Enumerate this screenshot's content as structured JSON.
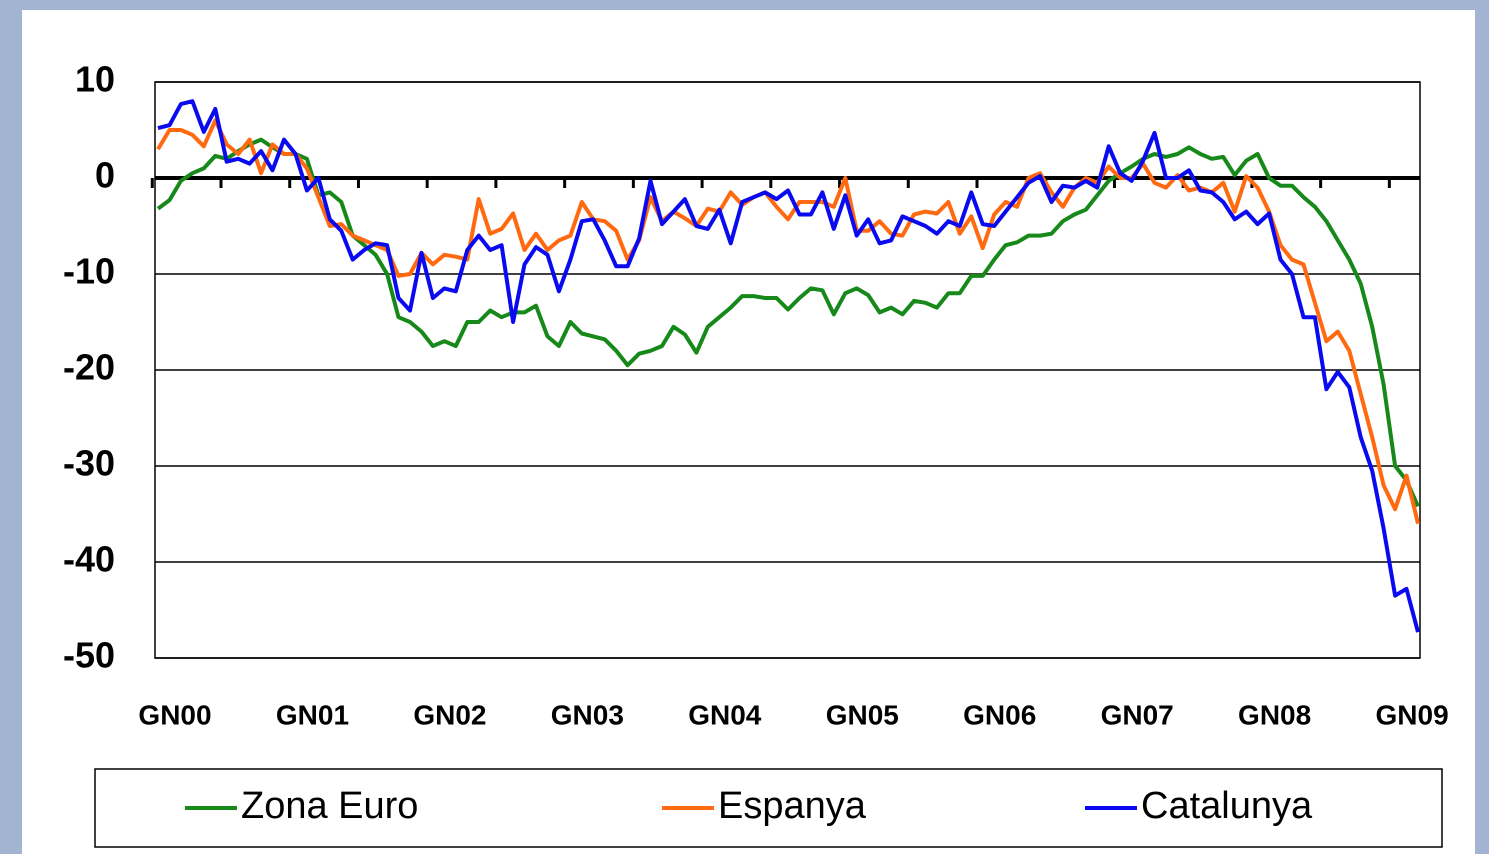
{
  "chart_data": {
    "type": "line",
    "categories": [
      "GN00",
      null,
      null,
      null,
      null,
      null,
      null,
      null,
      null,
      null,
      null,
      null,
      "GN01",
      null,
      null,
      null,
      null,
      null,
      null,
      null,
      null,
      null,
      null,
      null,
      "GN02",
      null,
      null,
      null,
      null,
      null,
      null,
      null,
      null,
      null,
      null,
      null,
      "GN03",
      null,
      null,
      null,
      null,
      null,
      null,
      null,
      null,
      null,
      null,
      null,
      "GN04",
      null,
      null,
      null,
      null,
      null,
      null,
      null,
      null,
      null,
      null,
      null,
      "GN05",
      null,
      null,
      null,
      null,
      null,
      null,
      null,
      null,
      null,
      null,
      null,
      "GN06",
      null,
      null,
      null,
      null,
      null,
      null,
      null,
      null,
      null,
      null,
      null,
      "GN07",
      null,
      null,
      null,
      null,
      null,
      null,
      null,
      null,
      null,
      null,
      null,
      "GN08",
      null,
      null,
      null,
      null,
      null,
      null,
      null,
      null,
      null,
      null,
      null,
      "GN09",
      null,
      null
    ],
    "series": [
      {
        "name": "Zona Euro",
        "color": "#17891a",
        "values": [
          -3.2,
          -2.3,
          -0.3,
          0.5,
          1,
          2.3,
          2,
          2.8,
          3.5,
          4,
          3.2,
          2.5,
          2.5,
          2,
          -1.8,
          -1.5,
          -2.5,
          -6,
          -7,
          -8,
          -10,
          -14.5,
          -15,
          -16,
          -17.5,
          -17,
          -17.5,
          -15,
          -15,
          -13.8,
          -14.5,
          -14,
          -14,
          -13.3,
          -16.5,
          -17.5,
          -15,
          -16.2,
          -16.5,
          -16.8,
          -18,
          -19.5,
          -18.3,
          -18,
          -17.5,
          -15.5,
          -16.3,
          -18.2,
          -15.5,
          -14.5,
          -13.5,
          -12.3,
          -12.3,
          -12.5,
          -12.5,
          -13.7,
          -12.5,
          -11.5,
          -11.7,
          -14.2,
          -12,
          -11.5,
          -12.2,
          -14,
          -13.5,
          -14.2,
          -12.8,
          -13,
          -13.5,
          -12,
          -12,
          -10.2,
          -10.2,
          -8.5,
          -7,
          -6.7,
          -6,
          -6,
          -5.8,
          -4.5,
          -3.8,
          -3.3,
          -1.8,
          -0.3,
          0.5,
          1.2,
          2,
          2.5,
          2.2,
          2.5,
          3.2,
          2.5,
          2,
          2.2,
          0.3,
          1.8,
          2.5,
          0,
          -0.8,
          -0.8,
          -2,
          -3,
          -4.5,
          -6.5,
          -8.5,
          -11,
          -15.5,
          -21.5,
          -30,
          -31.5,
          -34.2
        ]
      },
      {
        "name": "Espanya",
        "color": "#ff6a10",
        "values": [
          3,
          5,
          5,
          4.5,
          3.3,
          6,
          3.5,
          2.5,
          4,
          0.5,
          3.5,
          2.5,
          2.5,
          1,
          -2,
          -5,
          -4.8,
          -6,
          -6.5,
          -7,
          -7.5,
          -10.2,
          -10,
          -7.8,
          -9,
          -8,
          -8.2,
          -8.5,
          -2.2,
          -5.8,
          -5.3,
          -3.7,
          -7.5,
          -5.8,
          -7.5,
          -6.5,
          -6,
          -2.5,
          -4.3,
          -4.5,
          -5.5,
          -8.5,
          -6.5,
          -2,
          -4.5,
          -3.5,
          -4.2,
          -5,
          -3.2,
          -3.5,
          -1.5,
          -2.8,
          -2,
          -1.5,
          -3,
          -4.3,
          -2.5,
          -2.5,
          -2.5,
          -3,
          0,
          -5.5,
          -5.5,
          -4.5,
          -5.8,
          -6,
          -3.8,
          -3.5,
          -3.7,
          -2.5,
          -5.8,
          -4,
          -7.3,
          -3.8,
          -2.5,
          -3,
          0,
          0.5,
          -1.5,
          -3,
          -1,
          0,
          -0.5,
          1.2,
          0,
          0,
          1.5,
          -0.5,
          -1,
          0.3,
          -1.3,
          -1,
          -1.5,
          -0.5,
          -3.5,
          0.2,
          -1,
          -3.5,
          -7,
          -8.5,
          -9,
          -13,
          -17,
          -16,
          -18,
          -22.5,
          -27,
          -32,
          -34.5,
          -31,
          -36
        ]
      },
      {
        "name": "Catalunya",
        "color": "#0a0af0",
        "values": [
          5.2,
          5.5,
          7.7,
          8,
          4.8,
          7.2,
          1.7,
          2,
          1.5,
          2.8,
          0.8,
          4,
          2.5,
          -1.3,
          0,
          -4.3,
          -5.5,
          -8.5,
          -7.5,
          -6.8,
          -7,
          -12.5,
          -13.8,
          -7.8,
          -12.5,
          -11.5,
          -11.8,
          -7.5,
          -6,
          -7.5,
          -7,
          -15,
          -9,
          -7.2,
          -8,
          -11.8,
          -8.5,
          -4.5,
          -4.3,
          -6.5,
          -9.2,
          -9.2,
          -6.3,
          -0.3,
          -4.8,
          -3.5,
          -2.2,
          -5,
          -5.3,
          -3.3,
          -6.8,
          -2.5,
          -2,
          -1.5,
          -2.2,
          -1.3,
          -3.8,
          -3.8,
          -1.5,
          -5.3,
          -1.8,
          -6,
          -4.3,
          -6.8,
          -6.5,
          -4,
          -4.5,
          -5,
          -5.8,
          -4.5,
          -5,
          -1.5,
          -4.8,
          -5,
          -3.5,
          -2,
          -0.5,
          0.2,
          -2.5,
          -0.8,
          -1,
          -0.3,
          -1,
          3.3,
          0.5,
          -0.3,
          1.8,
          4.7,
          0,
          0,
          0.8,
          -1.3,
          -1.5,
          -2.5,
          -4.3,
          -3.5,
          -4.8,
          -3.7,
          -8.5,
          -10,
          -14.5,
          -14.5,
          -22,
          -20.2,
          -21.8,
          -27,
          -30.5,
          -36.5,
          -43.5,
          -42.8,
          -47.3
        ]
      }
    ],
    "ylim": [
      -50,
      10
    ],
    "yticks": [
      -50,
      -40,
      -30,
      -20,
      -10,
      0,
      10
    ],
    "grid": true,
    "legend": "bottom"
  }
}
